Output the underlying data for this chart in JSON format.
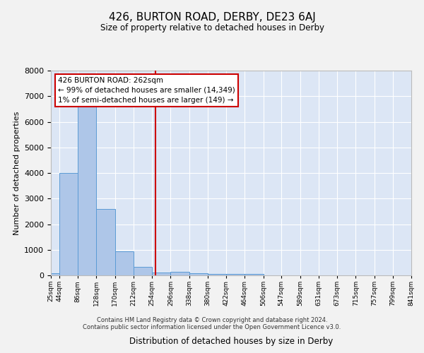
{
  "title": "426, BURTON ROAD, DERBY, DE23 6AJ",
  "subtitle": "Size of property relative to detached houses in Derby",
  "xlabel": "Distribution of detached houses by size in Derby",
  "ylabel": "Number of detached properties",
  "footer_line1": "Contains HM Land Registry data © Crown copyright and database right 2024.",
  "footer_line2": "Contains public sector information licensed under the Open Government Licence v3.0.",
  "property_label": "426 BURTON ROAD: 262sqm",
  "annotation_line1": "← 99% of detached houses are smaller (14,349)",
  "annotation_line2": "1% of semi-detached houses are larger (149) →",
  "property_size": 262,
  "bin_edges": [
    25,
    44,
    86,
    128,
    170,
    212,
    254,
    296,
    338,
    380,
    422,
    464,
    506,
    547,
    589,
    631,
    673,
    715,
    757,
    799,
    841
  ],
  "bin_labels": [
    "25sqm",
    "44sqm",
    "86sqm",
    "128sqm",
    "170sqm",
    "212sqm",
    "254sqm",
    "296sqm",
    "338sqm",
    "380sqm",
    "422sqm",
    "464sqm",
    "506sqm",
    "547sqm",
    "589sqm",
    "631sqm",
    "673sqm",
    "715sqm",
    "757sqm",
    "799sqm",
    "841sqm"
  ],
  "bar_heights": [
    80,
    4000,
    6600,
    2600,
    950,
    330,
    110,
    140,
    80,
    60,
    50,
    50,
    0,
    0,
    0,
    0,
    0,
    0,
    0,
    0
  ],
  "bar_color": "#aec6e8",
  "bar_edge_color": "#5b9bd5",
  "vline_color": "#cc0000",
  "vline_x": 262,
  "ylim": [
    0,
    8000
  ],
  "background_color": "#dce6f5",
  "fig_background_color": "#f2f2f2",
  "grid_color": "#ffffff"
}
